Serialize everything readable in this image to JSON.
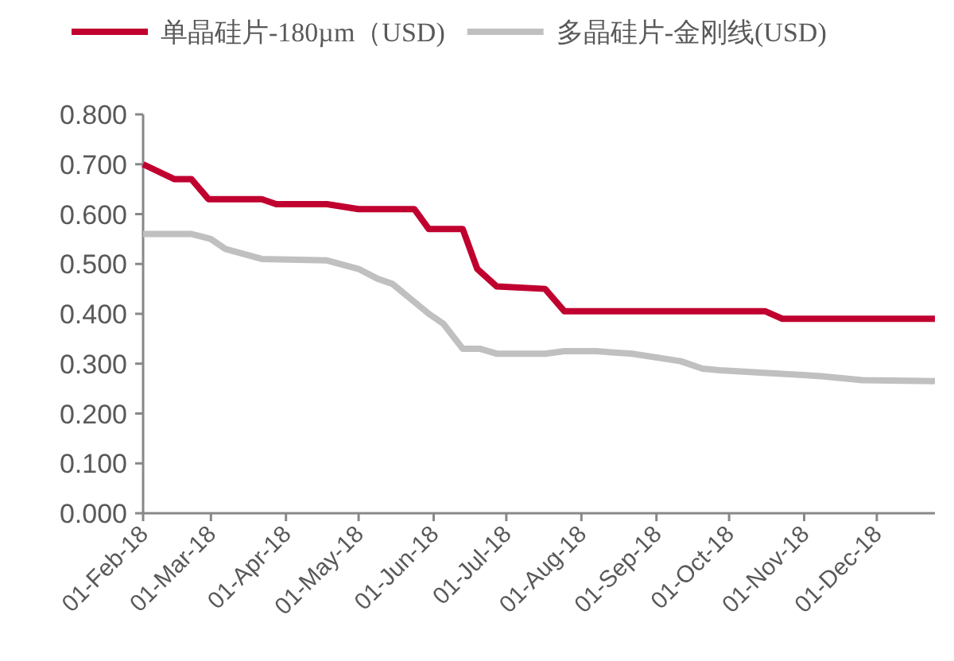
{
  "chart_data": {
    "type": "line",
    "legend": "top",
    "marker": "none",
    "line_style": "solid",
    "xlim": [
      "2018-02-01",
      "2018-12-25"
    ],
    "xticks": [
      {
        "value": "2018-02-01",
        "label": "01-Feb-18"
      },
      {
        "value": "2018-03-01",
        "label": "01-Mar-18"
      },
      {
        "value": "2018-04-01",
        "label": "01-Apr-18"
      },
      {
        "value": "2018-05-01",
        "label": "01-May-18"
      },
      {
        "value": "2018-06-01",
        "label": "01-Jun-18"
      },
      {
        "value": "2018-07-01",
        "label": "01-Jul-18"
      },
      {
        "value": "2018-08-01",
        "label": "01-Aug-18"
      },
      {
        "value": "2018-09-01",
        "label": "01-Sep-18"
      },
      {
        "value": "2018-10-01",
        "label": "01-Oct-18"
      },
      {
        "value": "2018-11-01",
        "label": "01-Nov-18"
      },
      {
        "value": "2018-12-01",
        "label": "01-Dec-18"
      }
    ],
    "ylim": [
      0,
      0.8
    ],
    "yticks": [
      {
        "value": 0,
        "label": "0.000"
      },
      {
        "value": 0.1,
        "label": "0.100"
      },
      {
        "value": 0.2,
        "label": "0.200"
      },
      {
        "value": 0.3,
        "label": "0.300"
      },
      {
        "value": 0.4,
        "label": "0.400"
      },
      {
        "value": 0.5,
        "label": "0.500"
      },
      {
        "value": 0.6,
        "label": "0.600"
      },
      {
        "value": 0.7,
        "label": "0.700"
      },
      {
        "value": 0.8,
        "label": "0.800"
      }
    ],
    "series": [
      {
        "name": "单晶硅片-180µm（USD)",
        "color": "#c0002f",
        "x": [
          "2018-02-01",
          "2018-02-14",
          "2018-02-21",
          "2018-02-28",
          "2018-03-22",
          "2018-03-28",
          "2018-04-18",
          "2018-05-01",
          "2018-05-24",
          "2018-05-30",
          "2018-06-13",
          "2018-06-19",
          "2018-06-27",
          "2018-07-17",
          "2018-07-25",
          "2018-10-16",
          "2018-10-23",
          "2018-12-25"
        ],
        "values": [
          0.7,
          0.67,
          0.67,
          0.63,
          0.63,
          0.62,
          0.62,
          0.61,
          0.61,
          0.57,
          0.57,
          0.49,
          0.455,
          0.45,
          0.405,
          0.405,
          0.39,
          0.39
        ]
      },
      {
        "name": "多晶硅片-金刚线(USD)",
        "color": "#c0c0c0",
        "x": [
          "2018-02-01",
          "2018-02-21",
          "2018-03-01",
          "2018-03-07",
          "2018-03-22",
          "2018-04-18",
          "2018-05-01",
          "2018-05-09",
          "2018-05-15",
          "2018-05-30",
          "2018-06-05",
          "2018-06-13",
          "2018-06-20",
          "2018-06-27",
          "2018-07-17",
          "2018-07-25",
          "2018-08-07",
          "2018-08-22",
          "2018-09-11",
          "2018-09-20",
          "2018-09-27",
          "2018-10-14",
          "2018-11-08",
          "2018-11-25",
          "2018-12-25"
        ],
        "values": [
          0.56,
          0.56,
          0.55,
          0.53,
          0.51,
          0.507,
          0.49,
          0.47,
          0.46,
          0.4,
          0.38,
          0.33,
          0.33,
          0.32,
          0.32,
          0.325,
          0.325,
          0.32,
          0.305,
          0.29,
          0.287,
          0.282,
          0.275,
          0.267,
          0.265
        ]
      }
    ]
  }
}
